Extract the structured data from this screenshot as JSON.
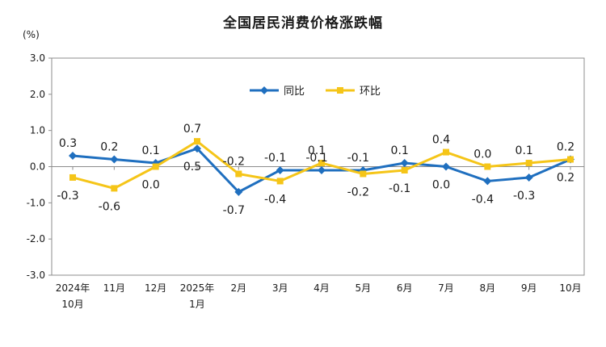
{
  "chart_data": {
    "type": "line",
    "title": "全国居民消费价格涨跌幅",
    "unit": "(%)",
    "categories": [
      [
        "2024年",
        "10月"
      ],
      [
        "11月"
      ],
      [
        "12月"
      ],
      [
        "2025年",
        "1月"
      ],
      [
        "2月"
      ],
      [
        "3月"
      ],
      [
        "4月"
      ],
      [
        "5月"
      ],
      [
        "6月"
      ],
      [
        "7月"
      ],
      [
        "8月"
      ],
      [
        "9月"
      ],
      [
        "10月"
      ]
    ],
    "ylim": [
      -3.0,
      3.0
    ],
    "yticks": [
      "3.0",
      "2.0",
      "1.0",
      "0.0",
      "-1.0",
      "-2.0",
      "-3.0"
    ],
    "ytick_values": [
      3,
      2,
      1,
      0,
      -1,
      -2,
      -3
    ],
    "legend_position": "top-center inside plot",
    "grid": false,
    "series": [
      {
        "name": "同比",
        "color": "#1f6fbf",
        "marker": "diamond",
        "values": [
          0.3,
          0.2,
          0.1,
          0.5,
          -0.7,
          -0.1,
          -0.1,
          -0.1,
          0.1,
          0.0,
          -0.4,
          -0.3,
          0.2
        ],
        "labels": [
          "0.3",
          "0.2",
          "0.1",
          "0.5",
          "-0.7",
          "-0.1",
          "-0.1",
          "-0.1",
          "0.1",
          "0.0",
          "-0.4",
          "-0.3",
          "0.2"
        ]
      },
      {
        "name": "环比",
        "color": "#f5c518",
        "marker": "square",
        "values": [
          -0.3,
          -0.6,
          0.0,
          0.7,
          -0.2,
          -0.4,
          0.1,
          -0.2,
          -0.1,
          0.4,
          0.0,
          0.1,
          0.2
        ],
        "labels": [
          "-0.3",
          "-0.6",
          "0.0",
          "0.7",
          "-0.2",
          "-0.4",
          "0.1",
          "-0.2",
          "-0.1",
          "0.4",
          "0.0",
          "0.1",
          "0.2"
        ]
      }
    ]
  }
}
